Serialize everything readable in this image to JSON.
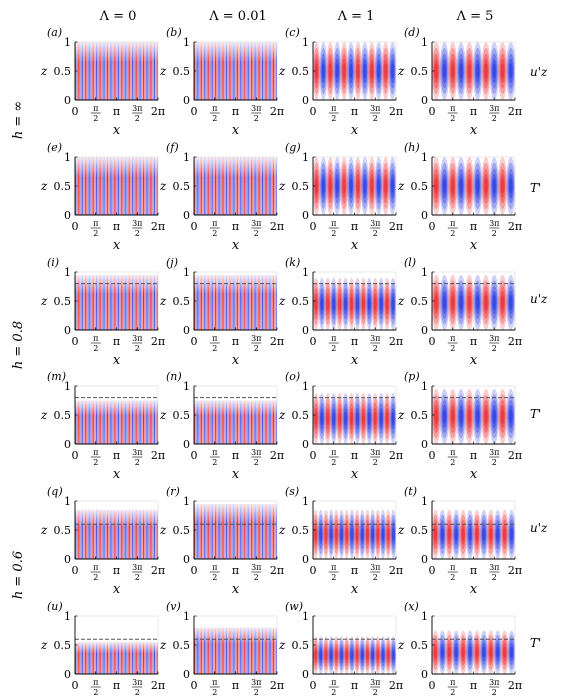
{
  "figure": {
    "columns": [
      "Λ = 0",
      "Λ = 0.01",
      "Λ = 1",
      "Λ = 5"
    ],
    "groups": [
      "h = ∞",
      "h = 0.8",
      "h = 0.6"
    ],
    "field_labels": [
      "u'z",
      "T'"
    ],
    "ytick_labels": [
      "0",
      "0.5",
      "1"
    ],
    "xtick_labels": [
      "0",
      "π/2",
      "π",
      "3π/2",
      "2π"
    ],
    "xlabel": "x",
    "ylabel": "z",
    "colors": {
      "positive": "#e8202a",
      "negative": "#1f2fe0"
    }
  },
  "chart_data": [
    {
      "id": "a",
      "label": "(a)",
      "type": "heatmap",
      "field": "u'z",
      "Lambda": 0,
      "h": null,
      "wavenumber": 30,
      "active_top": 1.0,
      "xlim": [
        0,
        6.283
      ],
      "ylim": [
        0,
        1
      ]
    },
    {
      "id": "b",
      "label": "(b)",
      "type": "heatmap",
      "field": "u'z",
      "Lambda": 0.01,
      "h": null,
      "wavenumber": 30,
      "active_top": 1.0,
      "xlim": [
        0,
        6.283
      ],
      "ylim": [
        0,
        1
      ]
    },
    {
      "id": "c",
      "label": "(c)",
      "type": "heatmap",
      "field": "u'z",
      "Lambda": 1,
      "h": null,
      "wavenumber": 6,
      "active_top": 1.0,
      "xlim": [
        0,
        6.283
      ],
      "ylim": [
        0,
        1
      ]
    },
    {
      "id": "d",
      "label": "(d)",
      "type": "heatmap",
      "field": "u'z",
      "Lambda": 5,
      "h": null,
      "wavenumber": 5,
      "active_top": 1.0,
      "xlim": [
        0,
        6.283
      ],
      "ylim": [
        0,
        1
      ]
    },
    {
      "id": "e",
      "label": "(e)",
      "type": "heatmap",
      "field": "T'",
      "Lambda": 0,
      "h": null,
      "wavenumber": 30,
      "active_top": 1.0,
      "xlim": [
        0,
        6.283
      ],
      "ylim": [
        0,
        1
      ]
    },
    {
      "id": "f",
      "label": "(f)",
      "type": "heatmap",
      "field": "T'",
      "Lambda": 0.01,
      "h": null,
      "wavenumber": 30,
      "active_top": 1.0,
      "xlim": [
        0,
        6.283
      ],
      "ylim": [
        0,
        1
      ]
    },
    {
      "id": "g",
      "label": "(g)",
      "type": "heatmap",
      "field": "T'",
      "Lambda": 1,
      "h": null,
      "wavenumber": 6,
      "active_top": 1.0,
      "xlim": [
        0,
        6.283
      ],
      "ylim": [
        0,
        1
      ]
    },
    {
      "id": "h",
      "label": "(h)",
      "type": "heatmap",
      "field": "T'",
      "Lambda": 5,
      "h": null,
      "wavenumber": 5,
      "active_top": 1.0,
      "xlim": [
        0,
        6.283
      ],
      "ylim": [
        0,
        1
      ]
    },
    {
      "id": "i",
      "label": "(i)",
      "type": "heatmap",
      "field": "u'z",
      "Lambda": 0,
      "h": 0.8,
      "wavenumber": 30,
      "active_top": 0.95,
      "xlim": [
        0,
        6.283
      ],
      "ylim": [
        0,
        1
      ]
    },
    {
      "id": "j",
      "label": "(j)",
      "type": "heatmap",
      "field": "u'z",
      "Lambda": 0.01,
      "h": 0.8,
      "wavenumber": 30,
      "active_top": 0.95,
      "xlim": [
        0,
        6.283
      ],
      "ylim": [
        0,
        1
      ]
    },
    {
      "id": "k",
      "label": "(k)",
      "type": "heatmap",
      "field": "u'z",
      "Lambda": 1,
      "h": 0.8,
      "wavenumber": 7,
      "active_top": 0.9,
      "xlim": [
        0,
        6.283
      ],
      "ylim": [
        0,
        1
      ]
    },
    {
      "id": "l",
      "label": "(l)",
      "type": "heatmap",
      "field": "u'z",
      "Lambda": 5,
      "h": 0.8,
      "wavenumber": 5,
      "active_top": 0.95,
      "xlim": [
        0,
        6.283
      ],
      "ylim": [
        0,
        1
      ]
    },
    {
      "id": "m",
      "label": "(m)",
      "type": "heatmap",
      "field": "T'",
      "Lambda": 0,
      "h": 0.8,
      "wavenumber": 30,
      "active_top": 0.75,
      "xlim": [
        0,
        6.283
      ],
      "ylim": [
        0,
        1
      ]
    },
    {
      "id": "n",
      "label": "(n)",
      "type": "heatmap",
      "field": "T'",
      "Lambda": 0.01,
      "h": 0.8,
      "wavenumber": 30,
      "active_top": 0.75,
      "xlim": [
        0,
        6.283
      ],
      "ylim": [
        0,
        1
      ]
    },
    {
      "id": "o",
      "label": "(o)",
      "type": "heatmap",
      "field": "T'",
      "Lambda": 1,
      "h": 0.8,
      "wavenumber": 7,
      "active_top": 0.88,
      "xlim": [
        0,
        6.283
      ],
      "ylim": [
        0,
        1
      ]
    },
    {
      "id": "p",
      "label": "(p)",
      "type": "heatmap",
      "field": "T'",
      "Lambda": 5,
      "h": 0.8,
      "wavenumber": 5,
      "active_top": 0.95,
      "xlim": [
        0,
        6.283
      ],
      "ylim": [
        0,
        1
      ]
    },
    {
      "id": "q",
      "label": "(q)",
      "type": "heatmap",
      "field": "u'z",
      "Lambda": 0,
      "h": 0.6,
      "wavenumber": 30,
      "active_top": 0.85,
      "xlim": [
        0,
        6.283
      ],
      "ylim": [
        0,
        1
      ]
    },
    {
      "id": "r",
      "label": "(r)",
      "type": "heatmap",
      "field": "u'z",
      "Lambda": 0.01,
      "h": 0.6,
      "wavenumber": 30,
      "active_top": 0.95,
      "xlim": [
        0,
        6.283
      ],
      "ylim": [
        0,
        1
      ]
    },
    {
      "id": "s",
      "label": "(s)",
      "type": "heatmap",
      "field": "u'z",
      "Lambda": 1,
      "h": 0.6,
      "wavenumber": 8,
      "active_top": 0.85,
      "xlim": [
        0,
        6.283
      ],
      "ylim": [
        0,
        1
      ]
    },
    {
      "id": "t",
      "label": "(t)",
      "type": "heatmap",
      "field": "u'z",
      "Lambda": 5,
      "h": 0.6,
      "wavenumber": 6,
      "active_top": 0.85,
      "xlim": [
        0,
        6.283
      ],
      "ylim": [
        0,
        1
      ]
    },
    {
      "id": "u",
      "label": "(u)",
      "type": "heatmap",
      "field": "T'",
      "Lambda": 0,
      "h": 0.6,
      "wavenumber": 30,
      "active_top": 0.55,
      "xlim": [
        0,
        6.283
      ],
      "ylim": [
        0,
        1
      ]
    },
    {
      "id": "v",
      "label": "(v)",
      "type": "heatmap",
      "field": "T'",
      "Lambda": 0.01,
      "h": 0.6,
      "wavenumber": 30,
      "active_top": 0.8,
      "xlim": [
        0,
        6.283
      ],
      "ylim": [
        0,
        1
      ]
    },
    {
      "id": "w",
      "label": "(w)",
      "type": "heatmap",
      "field": "T'",
      "Lambda": 1,
      "h": 0.6,
      "wavenumber": 8,
      "active_top": 0.65,
      "xlim": [
        0,
        6.283
      ],
      "ylim": [
        0,
        1
      ]
    },
    {
      "id": "x",
      "label": "(x)",
      "type": "heatmap",
      "field": "T'",
      "Lambda": 5,
      "h": 0.6,
      "wavenumber": 6,
      "active_top": 0.75,
      "xlim": [
        0,
        6.283
      ],
      "ylim": [
        0,
        1
      ]
    }
  ]
}
